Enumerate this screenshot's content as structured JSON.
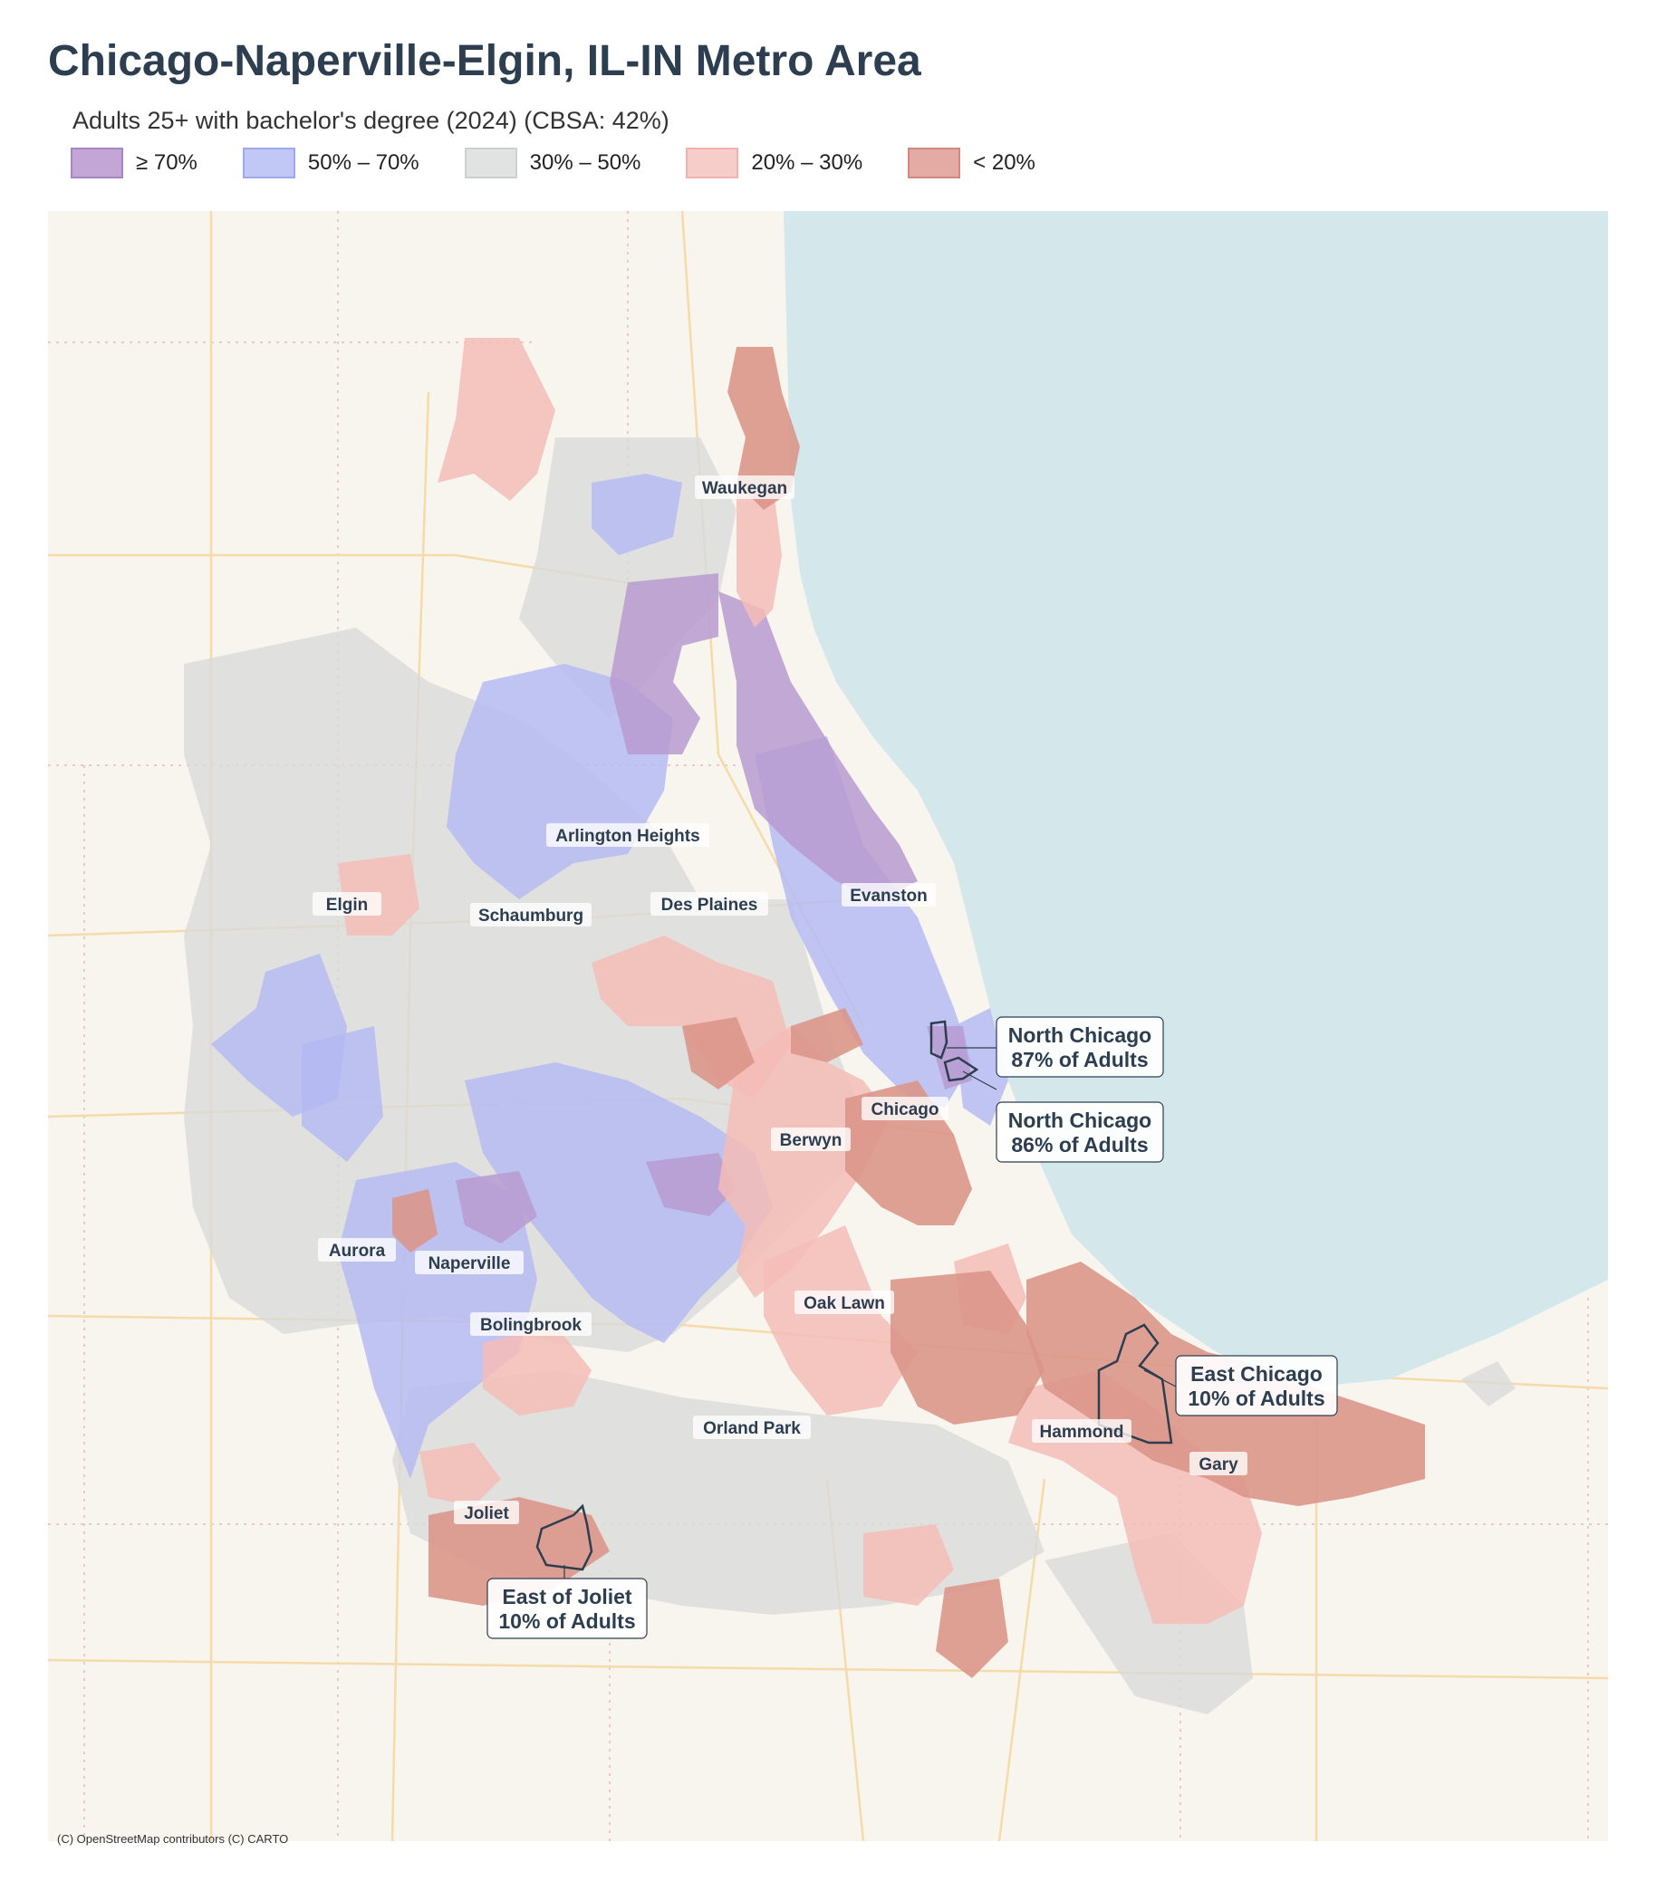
{
  "title": "Chicago-Naperville-Elgin, IL-IN Metro Area",
  "subtitle": "Adults 25+ with bachelor's degree (2024)  (CBSA: 42%)",
  "legend": [
    {
      "label": "≥ 70%",
      "fill": "#c3a6d6",
      "stroke": "#a586c2"
    },
    {
      "label": "50% – 70%",
      "fill": "#c2c8f6",
      "stroke": "#9fa8ee"
    },
    {
      "label": "30% – 50%",
      "fill": "#e1e3e3",
      "stroke": "#cdd0d0"
    },
    {
      "label": "20% – 30%",
      "fill": "#f7cdca",
      "stroke": "#efb2ad"
    },
    {
      "label": "< 20%",
      "fill": "#e3aba3",
      "stroke": "#d28a80"
    }
  ],
  "map": {
    "lake_name_color": "#d4e8ec",
    "cities": [
      "Waukegan",
      "Arlington Heights",
      "Elgin",
      "Schaumburg",
      "Des Plaines",
      "Evanston",
      "Chicago",
      "Berwyn",
      "Aurora",
      "Naperville",
      "Oak Lawn",
      "Bolingbrook",
      "Orland Park",
      "Hammond",
      "Gary",
      "Joliet"
    ],
    "callouts": [
      {
        "line1": "North Chicago",
        "line2": "87% of Adults"
      },
      {
        "line1": "North Chicago",
        "line2": "86% of Adults"
      },
      {
        "line1": "East Chicago",
        "line2": "10% of Adults"
      },
      {
        "line1": "East of Joliet",
        "line2": "10% of Adults"
      }
    ]
  },
  "credit": "(C) OpenStreetMap contributors (C) CARTO"
}
